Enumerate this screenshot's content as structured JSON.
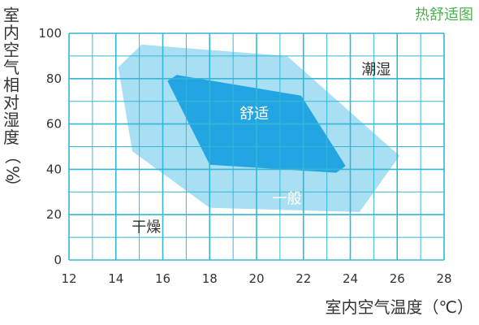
{
  "chart_data": {
    "type": "area",
    "title": "热舒适图",
    "xlabel": "室内空气温度（℃）",
    "ylabel": "室内空气相对湿度（%）",
    "xlim": [
      12,
      28
    ],
    "ylim": [
      0,
      100
    ],
    "xticks": [
      12,
      14,
      16,
      18,
      20,
      22,
      24,
      26,
      28
    ],
    "yticks": [
      0,
      20,
      40,
      60,
      80,
      100
    ],
    "minor_x": [
      13,
      15,
      17,
      19,
      21,
      23,
      25,
      27
    ],
    "minor_y": [
      10,
      30,
      50,
      70,
      90
    ],
    "grid": true,
    "regions": [
      {
        "label": "一般",
        "points": [
          [
            14.1,
            85
          ],
          [
            15.1,
            95
          ],
          [
            21.3,
            90
          ],
          [
            26.1,
            46
          ],
          [
            24.4,
            21.2
          ],
          [
            18.0,
            23
          ],
          [
            14.7,
            48
          ]
        ],
        "label_pos": [
          21.3,
          27
        ]
      },
      {
        "label": "舒适",
        "points": [
          [
            16.2,
            79
          ],
          [
            16.6,
            81.6
          ],
          [
            21.9,
            72.5
          ],
          [
            23.8,
            41.5
          ],
          [
            23.4,
            38.5
          ],
          [
            18.0,
            42
          ]
        ],
        "label_pos": [
          19.9,
          64.5
        ]
      }
    ],
    "annotations": [
      {
        "text": "潮湿",
        "x": 25.1,
        "y": 84
      },
      {
        "text": "干燥",
        "x": 15.3,
        "y": 14.5
      }
    ]
  },
  "colors": {
    "grid": "#34b7d6",
    "region_outer": "#a9dff3",
    "region_inner": "#22a5e2",
    "title": "#4bb24b",
    "text": "#333333"
  }
}
